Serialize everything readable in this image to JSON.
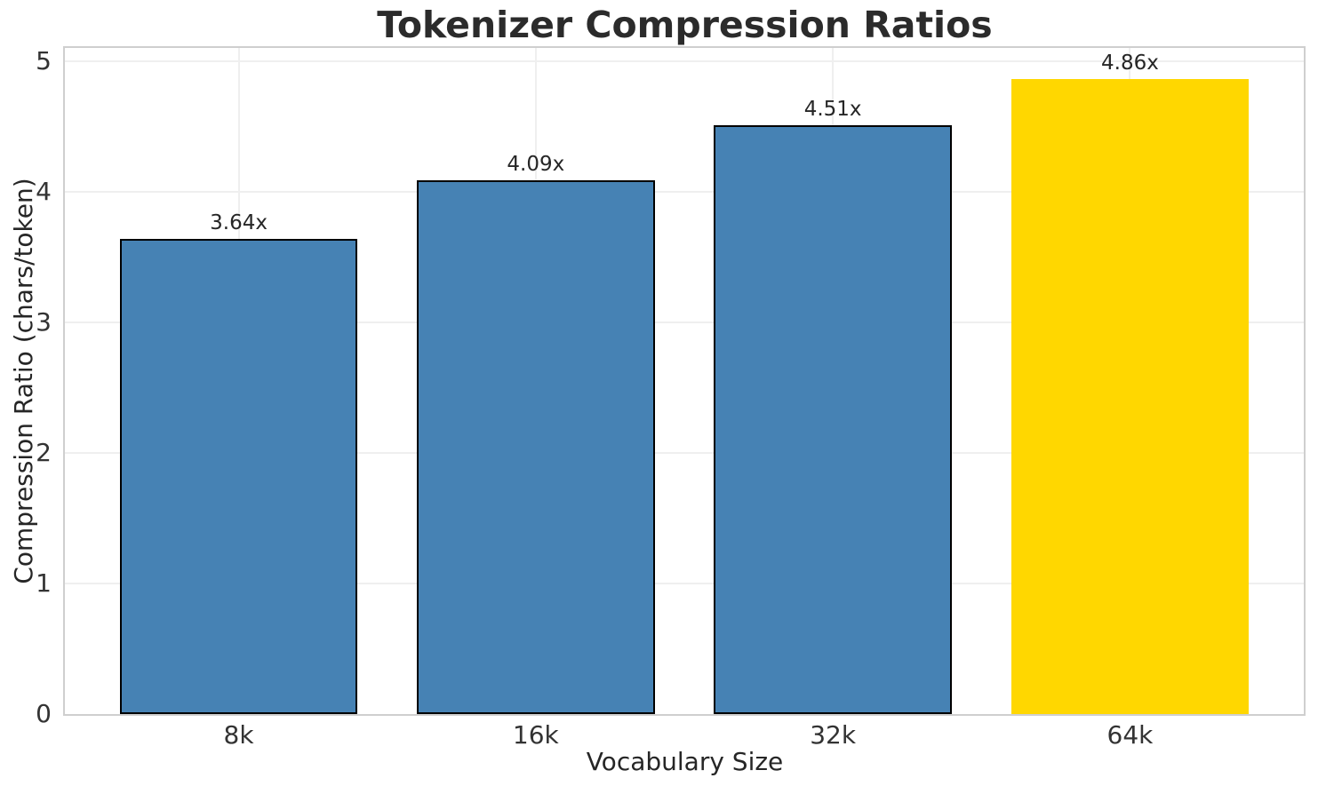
{
  "chart_data": {
    "type": "bar",
    "title": "Tokenizer Compression Ratios",
    "xlabel": "Vocabulary Size",
    "ylabel": "Compression Ratio (chars/token)",
    "categories": [
      "8k",
      "16k",
      "32k",
      "64k"
    ],
    "values": [
      3.64,
      4.09,
      4.51,
      4.86
    ],
    "bar_labels": [
      "3.64x",
      "4.09x",
      "4.51x",
      "4.86x"
    ],
    "yticks": [
      0,
      1,
      2,
      3,
      4,
      5
    ],
    "ylim": [
      0,
      5.1
    ],
    "grid": true,
    "legend_position": "none",
    "highlight_index": 3,
    "colors": {
      "bar": "#4682b4",
      "highlight_bar": "#ffd700",
      "bar_edge": "#000000",
      "grid": "#efefef",
      "spine": "#cfcfcf",
      "title_text": "#2b2b2b",
      "text": "#262626"
    }
  }
}
